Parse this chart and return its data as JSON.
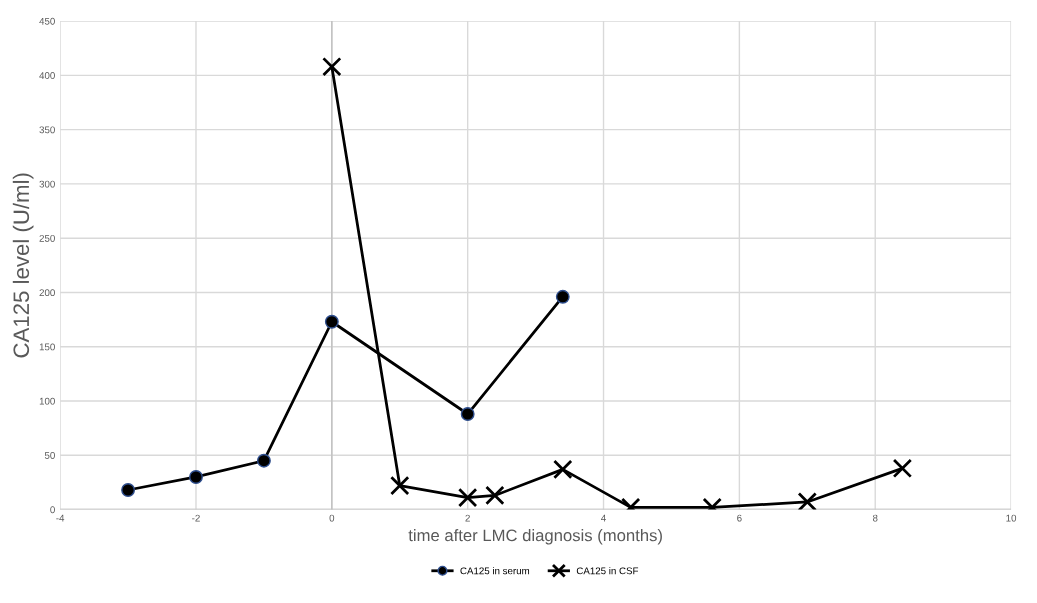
{
  "chart_data": {
    "type": "line",
    "xlabel": "time after LMC diagnosis (months)",
    "ylabel": "CA125 level (U/ml)",
    "xlim": [
      -4,
      10
    ],
    "xticks": [
      -4,
      -2,
      0,
      2,
      4,
      6,
      8,
      10
    ],
    "ylim": [
      0,
      450
    ],
    "yticks": [
      0,
      50,
      100,
      150,
      200,
      250,
      300,
      350,
      400,
      450
    ],
    "grid": true,
    "legend": "bottom",
    "series": [
      {
        "name": "CA125 in serum",
        "color": "#000000",
        "marker": "circle",
        "x": [
          -3,
          -2,
          -1,
          0,
          2,
          3.4
        ],
        "values": [
          18,
          30,
          45,
          173,
          88,
          196
        ]
      },
      {
        "name": "CA125 in CSF",
        "color": "#000000",
        "marker": "cross",
        "x": [
          0,
          1,
          2,
          2.4,
          3.4,
          4.4,
          5.6,
          7,
          8.4
        ],
        "values": [
          408,
          22,
          11,
          13,
          37,
          2,
          2,
          7,
          38
        ]
      }
    ]
  }
}
